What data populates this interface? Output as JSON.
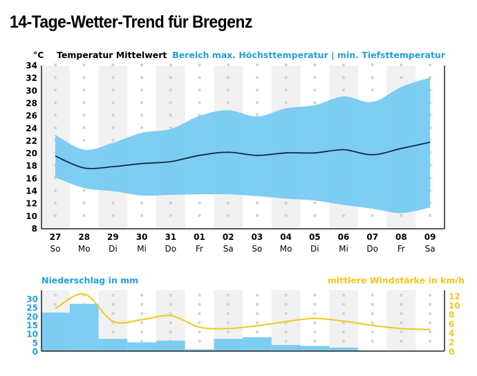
{
  "title": "14-Tage-Wetter-Trend für Bregenz",
  "colors": {
    "band": "#73c9f2",
    "mean_line": "#0d2b45",
    "stripe": "#f1f1f1",
    "dot": "#d4d4d4",
    "precip_bar": "#73c9f2",
    "wind_line": "#f5c518",
    "precip_label": "#1fa0de",
    "wind_label": "#f5c518"
  },
  "chart_data": [
    {
      "type": "area",
      "title": "Temperatur",
      "unit_label": "°C",
      "mean_label": "Temperatur Mittelwert",
      "range_label": "Bereich max. Höchsttemperatur | min. Tiefsttemperatur",
      "categories": [
        "27",
        "28",
        "29",
        "30",
        "31",
        "01",
        "02",
        "03",
        "04",
        "05",
        "06",
        "07",
        "08",
        "09"
      ],
      "weekdays": [
        "So",
        "Mo",
        "Di",
        "Mi",
        "Do",
        "Fr",
        "Sa",
        "So",
        "Mo",
        "Di",
        "Mi",
        "Do",
        "Fr",
        "Sa"
      ],
      "ylim": [
        8,
        34
      ],
      "yticks": [
        8,
        10,
        12,
        14,
        16,
        18,
        20,
        22,
        24,
        26,
        28,
        30,
        32,
        34
      ],
      "grid": "dots",
      "series": [
        {
          "name": "max. Höchsttemperatur",
          "values": [
            23.0,
            20.6,
            21.7,
            23.3,
            23.9,
            26.0,
            26.9,
            25.9,
            27.2,
            27.7,
            29.1,
            28.2,
            30.6,
            32.1
          ]
        },
        {
          "name": "Temperatur Mittelwert",
          "values": [
            19.6,
            17.7,
            17.9,
            18.4,
            18.7,
            19.7,
            20.2,
            19.7,
            20.1,
            20.1,
            20.6,
            19.8,
            20.8,
            21.8
          ]
        },
        {
          "name": "min. Tiefsttemperatur",
          "values": [
            16.2,
            14.5,
            14.0,
            13.3,
            13.4,
            13.5,
            13.5,
            13.2,
            12.8,
            12.5,
            11.8,
            11.2,
            10.5,
            11.4
          ]
        }
      ]
    },
    {
      "type": "bar",
      "title": "Niederschlag in mm",
      "categories": [
        "27",
        "28",
        "29",
        "30",
        "31",
        "01",
        "02",
        "03",
        "04",
        "05",
        "06",
        "07",
        "08",
        "09"
      ],
      "values": [
        22,
        27,
        7,
        5,
        6,
        1,
        7,
        8,
        3.5,
        3,
        2,
        0.3,
        0,
        0
      ],
      "ylim": [
        0,
        30
      ],
      "yticks": [
        0,
        5,
        10,
        15,
        20,
        25,
        30
      ],
      "axis": "left"
    },
    {
      "type": "line",
      "title": "mittlere Windstärke in km/h",
      "categories": [
        "27",
        "28",
        "29",
        "30",
        "31",
        "01",
        "02",
        "03",
        "04",
        "05",
        "06",
        "07",
        "08",
        "09"
      ],
      "values": [
        9.2,
        12.4,
        6.5,
        6.8,
        7.7,
        5.2,
        4.9,
        5.5,
        6.4,
        7.1,
        6.5,
        5.6,
        4.9,
        4.7
      ],
      "ylim": [
        0,
        12
      ],
      "yticks": [
        0,
        2,
        4,
        6,
        8,
        10,
        12
      ],
      "axis": "right"
    }
  ]
}
